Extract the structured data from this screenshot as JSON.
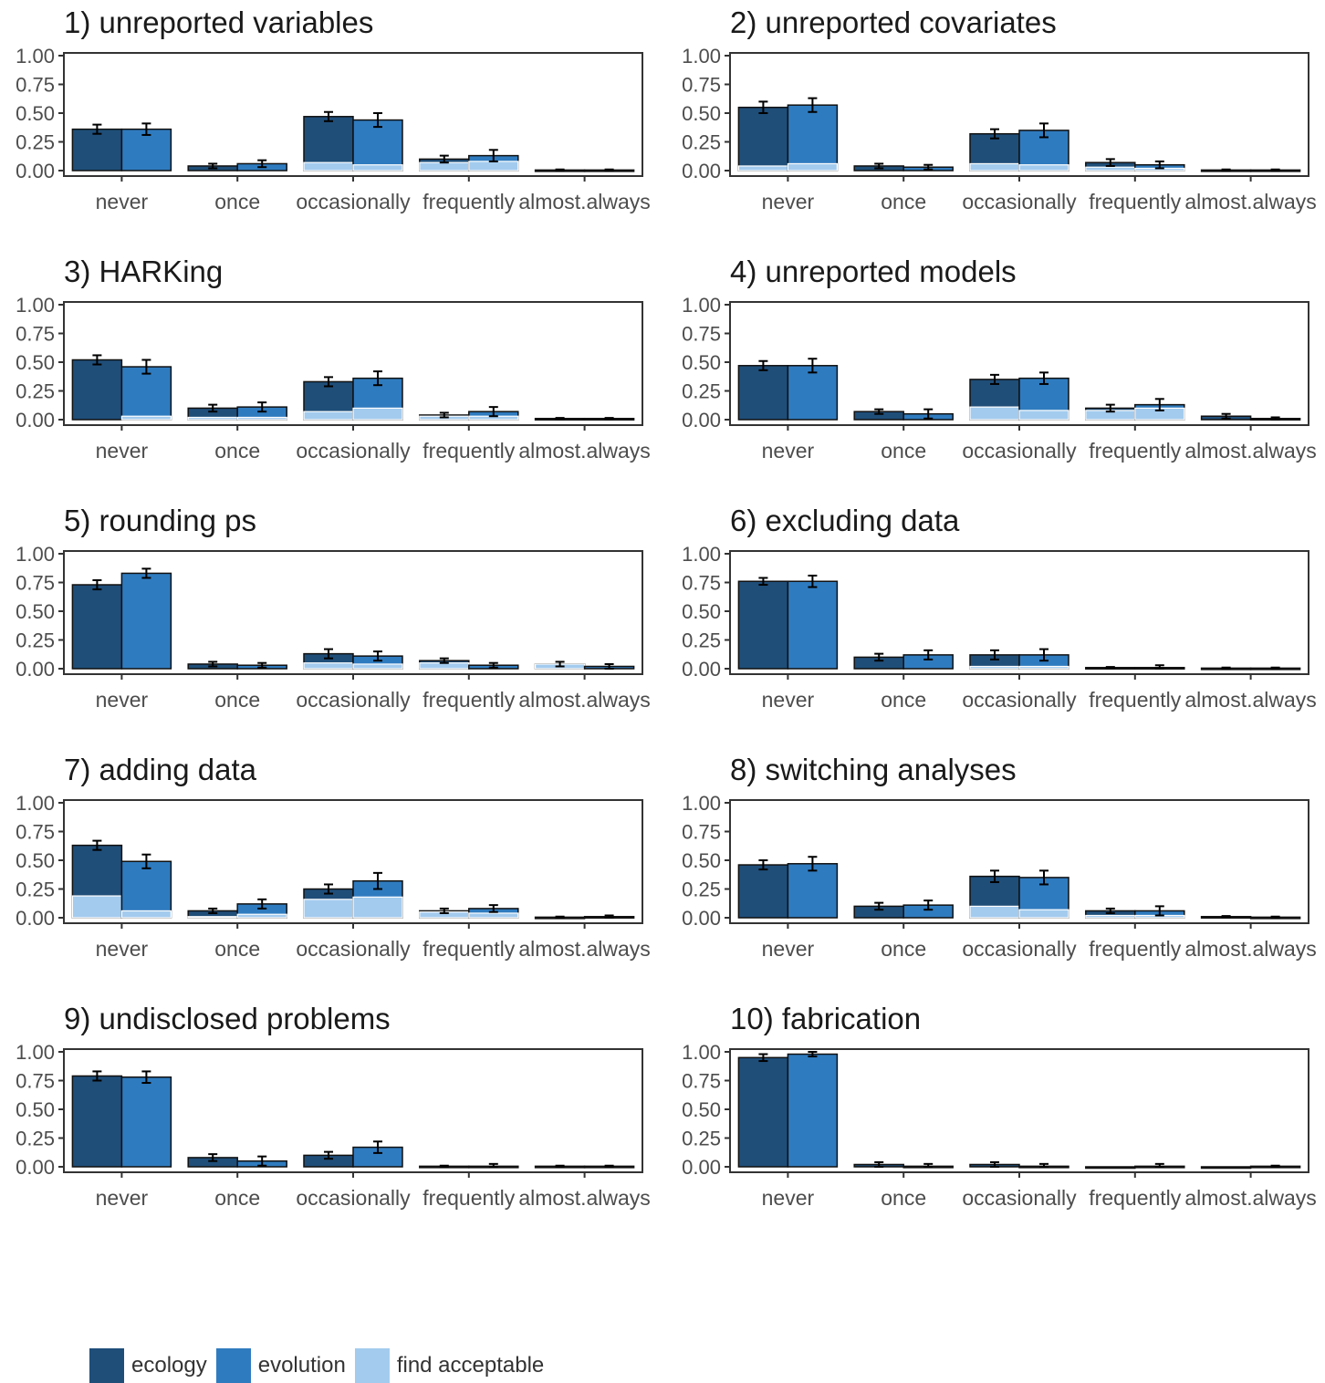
{
  "colors": {
    "ecology": "#1f4e79",
    "evolution": "#2f7bbf",
    "find_acceptable": "#a3cbee",
    "axis": "#333333",
    "tick_text": "#4d4d4d",
    "title_text": "#1a1a1a"
  },
  "chart_data": {
    "type": "bar",
    "categories": [
      "never",
      "once",
      "occasionally",
      "frequently",
      "almost.always"
    ],
    "y_ticks": [
      "0.00",
      "0.25",
      "0.50",
      "0.75",
      "1.00"
    ],
    "ylim": [
      0,
      1
    ],
    "grid": false,
    "legend_position": "bottom-left",
    "legend": [
      {
        "key": "ecology",
        "label": "ecology"
      },
      {
        "key": "evolution",
        "label": "evolution"
      },
      {
        "key": "find_acceptable",
        "label": "find acceptable"
      }
    ],
    "panels": [
      {
        "title": "1) unreported variables",
        "ecology": {
          "values": [
            0.36,
            0.04,
            0.47,
            0.1,
            0.005
          ],
          "acceptable": [
            0.0,
            0.0,
            0.07,
            0.07,
            0.0
          ],
          "err": [
            0.04,
            0.02,
            0.04,
            0.03,
            0.005
          ]
        },
        "evolution": {
          "values": [
            0.36,
            0.06,
            0.44,
            0.13,
            0.005
          ],
          "acceptable": [
            0.0,
            0.0,
            0.05,
            0.08,
            0.0
          ],
          "err": [
            0.05,
            0.03,
            0.06,
            0.05,
            0.005
          ]
        }
      },
      {
        "title": "2) unreported covariates",
        "ecology": {
          "values": [
            0.55,
            0.04,
            0.32,
            0.07,
            0.005
          ],
          "acceptable": [
            0.04,
            0.0,
            0.06,
            0.03,
            0.0
          ],
          "err": [
            0.05,
            0.02,
            0.04,
            0.03,
            0.005
          ]
        },
        "evolution": {
          "values": [
            0.57,
            0.03,
            0.35,
            0.05,
            0.005
          ],
          "acceptable": [
            0.06,
            0.0,
            0.05,
            0.02,
            0.0
          ],
          "err": [
            0.06,
            0.02,
            0.06,
            0.03,
            0.005
          ]
        }
      },
      {
        "title": "3) HARKing",
        "ecology": {
          "values": [
            0.52,
            0.1,
            0.33,
            0.04,
            0.01
          ],
          "acceptable": [
            0.0,
            0.02,
            0.07,
            0.03,
            0.0
          ],
          "err": [
            0.04,
            0.03,
            0.04,
            0.02,
            0.005
          ]
        },
        "evolution": {
          "values": [
            0.46,
            0.11,
            0.36,
            0.07,
            0.01
          ],
          "acceptable": [
            0.03,
            0.02,
            0.1,
            0.03,
            0.0
          ],
          "err": [
            0.06,
            0.04,
            0.06,
            0.04,
            0.005
          ]
        }
      },
      {
        "title": "4) unreported models",
        "ecology": {
          "values": [
            0.47,
            0.07,
            0.35,
            0.1,
            0.03
          ],
          "acceptable": [
            0.0,
            0.0,
            0.11,
            0.08,
            0.0
          ],
          "err": [
            0.04,
            0.02,
            0.04,
            0.03,
            0.02
          ]
        },
        "evolution": {
          "values": [
            0.47,
            0.05,
            0.36,
            0.13,
            0.01
          ],
          "acceptable": [
            0.0,
            0.0,
            0.08,
            0.1,
            0.0
          ],
          "err": [
            0.06,
            0.04,
            0.05,
            0.05,
            0.01
          ]
        }
      },
      {
        "title": "5) rounding ps",
        "ecology": {
          "values": [
            0.73,
            0.04,
            0.13,
            0.07,
            0.04
          ],
          "acceptable": [
            0.0,
            0.0,
            0.05,
            0.05,
            0.04
          ],
          "err": [
            0.04,
            0.02,
            0.04,
            0.02,
            0.02
          ]
        },
        "evolution": {
          "values": [
            0.83,
            0.03,
            0.11,
            0.03,
            0.02
          ],
          "acceptable": [
            0.0,
            0.0,
            0.04,
            0.0,
            0.0
          ],
          "err": [
            0.04,
            0.02,
            0.04,
            0.02,
            0.02
          ]
        }
      },
      {
        "title": "6) excluding data",
        "ecology": {
          "values": [
            0.76,
            0.1,
            0.12,
            0.01,
            0.005
          ],
          "acceptable": [
            0.0,
            0.0,
            0.02,
            0.0,
            0.0
          ],
          "err": [
            0.03,
            0.03,
            0.04,
            0.005,
            0.005
          ]
        },
        "evolution": {
          "values": [
            0.76,
            0.12,
            0.12,
            0.01,
            0.005
          ],
          "acceptable": [
            0.0,
            0.0,
            0.02,
            0.0,
            0.0
          ],
          "err": [
            0.05,
            0.04,
            0.05,
            0.02,
            0.005
          ]
        }
      },
      {
        "title": "7) adding data",
        "ecology": {
          "values": [
            0.63,
            0.06,
            0.25,
            0.06,
            0.005
          ],
          "acceptable": [
            0.19,
            0.01,
            0.16,
            0.05,
            0.0
          ],
          "err": [
            0.04,
            0.02,
            0.04,
            0.02,
            0.005
          ]
        },
        "evolution": {
          "values": [
            0.49,
            0.12,
            0.32,
            0.08,
            0.01
          ],
          "acceptable": [
            0.06,
            0.03,
            0.18,
            0.04,
            0.0
          ],
          "err": [
            0.06,
            0.04,
            0.07,
            0.03,
            0.01
          ]
        }
      },
      {
        "title": "8) switching analyses",
        "ecology": {
          "values": [
            0.46,
            0.1,
            0.36,
            0.06,
            0.01
          ],
          "acceptable": [
            0.0,
            0.0,
            0.1,
            0.02,
            0.0
          ],
          "err": [
            0.04,
            0.03,
            0.05,
            0.02,
            0.005
          ]
        },
        "evolution": {
          "values": [
            0.47,
            0.11,
            0.35,
            0.06,
            0.005
          ],
          "acceptable": [
            0.0,
            0.0,
            0.07,
            0.02,
            0.0
          ],
          "err": [
            0.06,
            0.04,
            0.06,
            0.04,
            0.005
          ]
        }
      },
      {
        "title": "9) undisclosed problems",
        "ecology": {
          "values": [
            0.79,
            0.08,
            0.1,
            0.005,
            0.005
          ],
          "acceptable": [
            0.0,
            0.0,
            0.0,
            0.0,
            0.0
          ],
          "err": [
            0.04,
            0.03,
            0.03,
            0.005,
            0.005
          ]
        },
        "evolution": {
          "values": [
            0.78,
            0.05,
            0.17,
            0.005,
            0.005
          ],
          "acceptable": [
            0.0,
            0.0,
            0.0,
            0.0,
            0.0
          ],
          "err": [
            0.05,
            0.04,
            0.05,
            0.02,
            0.005
          ]
        }
      },
      {
        "title": "10) fabrication",
        "ecology": {
          "values": [
            0.95,
            0.02,
            0.02,
            0.0,
            0.0
          ],
          "acceptable": [
            0.0,
            0.0,
            0.0,
            0.0,
            0.0
          ],
          "err": [
            0.03,
            0.02,
            0.02,
            0.0,
            0.0
          ]
        },
        "evolution": {
          "values": [
            0.98,
            0.005,
            0.005,
            0.005,
            0.005
          ],
          "acceptable": [
            0.0,
            0.0,
            0.0,
            0.0,
            0.0
          ],
          "err": [
            0.02,
            0.02,
            0.02,
            0.02,
            0.005
          ]
        }
      }
    ]
  }
}
